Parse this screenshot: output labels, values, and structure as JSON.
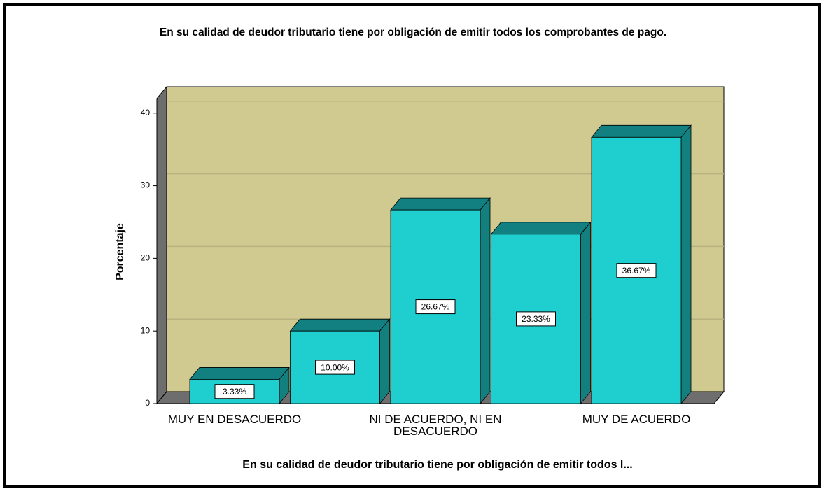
{
  "chart_data": {
    "type": "bar3d",
    "title": "En su calidad de deudor tributario tiene por obligación de emitir todos los comprobantes de pago.",
    "x_label": "En su calidad de deudor tributario tiene por obligación de emitir todos l...",
    "y_label": "Porcentaje",
    "categories": [
      "MUY EN DESACUERDO",
      null,
      "NI DE ACUERDO, NI EN DESACUERDO",
      null,
      "MUY DE ACUERDO"
    ],
    "values": [
      3.33,
      10.0,
      26.67,
      23.33,
      36.67
    ],
    "value_labels": [
      "3.33%",
      "10.00%",
      "26.67%",
      "23.33%",
      "36.67%"
    ],
    "color": "#1fcfcf",
    "ylim": [
      0,
      42
    ],
    "yticks": [
      0,
      10,
      20,
      30,
      40
    ],
    "grid": true
  }
}
